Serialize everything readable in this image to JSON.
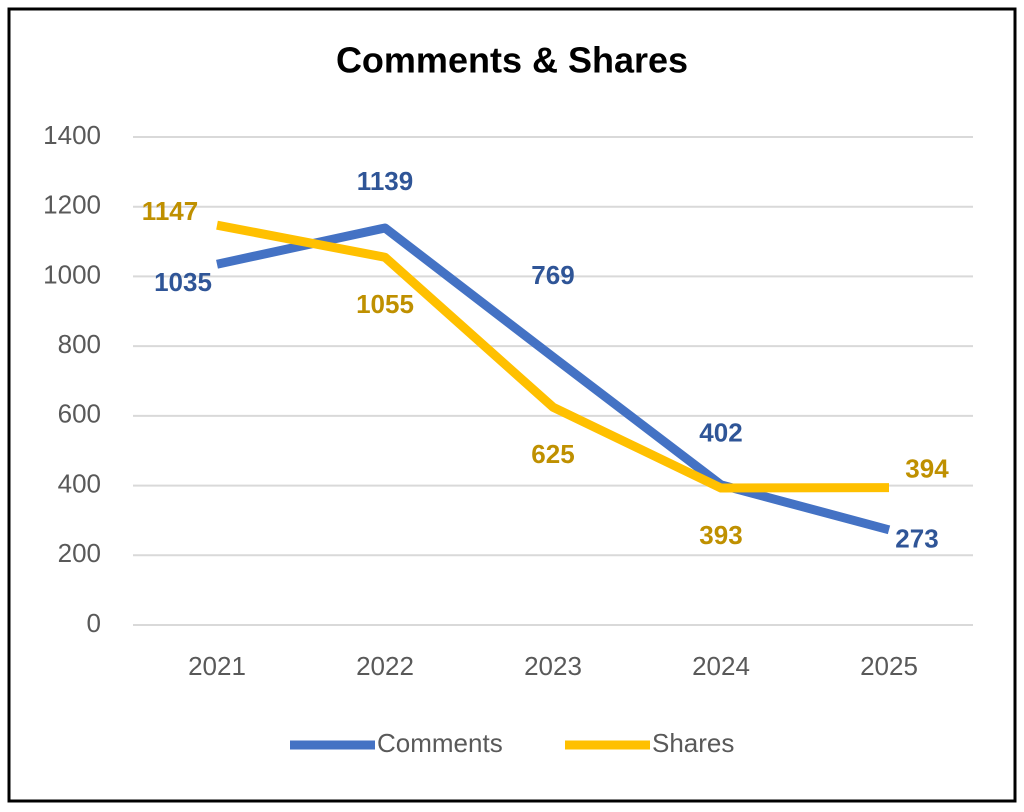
{
  "chart_data": {
    "type": "line",
    "title": "Comments & Shares",
    "categories": [
      "2021",
      "2022",
      "2023",
      "2024",
      "2025"
    ],
    "series": [
      {
        "name": "Comments",
        "color": "#4472c4",
        "label_color": "#2f5597",
        "values": [
          1035,
          1139,
          769,
          402,
          273
        ]
      },
      {
        "name": "Shares",
        "color": "#ffc000",
        "label_color": "#bf9000",
        "values": [
          1147,
          1055,
          625,
          393,
          394
        ]
      }
    ],
    "ylim": [
      0,
      1400
    ],
    "yticks": [
      0,
      200,
      400,
      600,
      800,
      1000,
      1200,
      1400
    ],
    "grid": true,
    "legend": "bottom"
  }
}
